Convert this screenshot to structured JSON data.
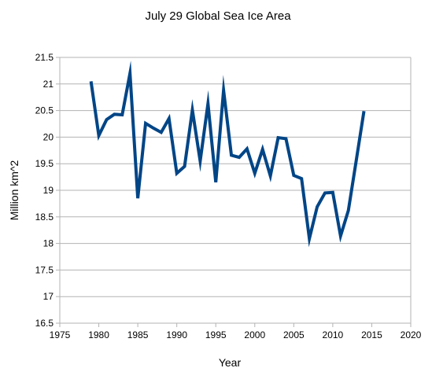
{
  "chart_data": {
    "type": "line",
    "title": "July 29 Global Sea Ice Area",
    "xlabel": "Year",
    "ylabel": "Million km^2",
    "xlim": [
      1975,
      2020
    ],
    "ylim": [
      16.5,
      21.5
    ],
    "x_ticks": [
      1975,
      1980,
      1985,
      1990,
      1995,
      2000,
      2005,
      2010,
      2015,
      2020
    ],
    "y_ticks": [
      16.5,
      17,
      17.5,
      18,
      18.5,
      19,
      19.5,
      20,
      20.5,
      21,
      21.5
    ],
    "x_tick_labels": [
      "1975",
      "1980",
      "1985",
      "1990",
      "1995",
      "2000",
      "2005",
      "2010",
      "2015",
      "2020"
    ],
    "y_tick_labels": [
      "16.5",
      "17",
      "17.5",
      "18",
      "18.5",
      "19",
      "19.5",
      "20",
      "20.5",
      "21",
      "21.5"
    ],
    "grid": "horizontal",
    "legend": "none",
    "series": [
      {
        "color": "#004586",
        "x": [
          1979,
          1980,
          1981,
          1982,
          1983,
          1984,
          1985,
          1986,
          1987,
          1988,
          1989,
          1990,
          1991,
          1992,
          1993,
          1994,
          1995,
          1996,
          1997,
          1998,
          1999,
          2000,
          2001,
          2002,
          2003,
          2004,
          2005,
          2006,
          2007,
          2008,
          2009,
          2010,
          2011,
          2012,
          2013,
          2014
        ],
        "values": [
          21.05,
          20.03,
          20.33,
          20.43,
          20.42,
          21.2,
          18.85,
          20.26,
          20.17,
          20.09,
          20.35,
          19.32,
          19.45,
          20.51,
          19.55,
          20.63,
          19.15,
          20.88,
          19.66,
          19.62,
          19.78,
          19.32,
          19.77,
          19.27,
          19.99,
          19.97,
          19.28,
          19.22,
          18.09,
          18.69,
          18.95,
          18.96,
          18.14,
          18.62,
          19.55,
          20.49
        ]
      }
    ]
  }
}
